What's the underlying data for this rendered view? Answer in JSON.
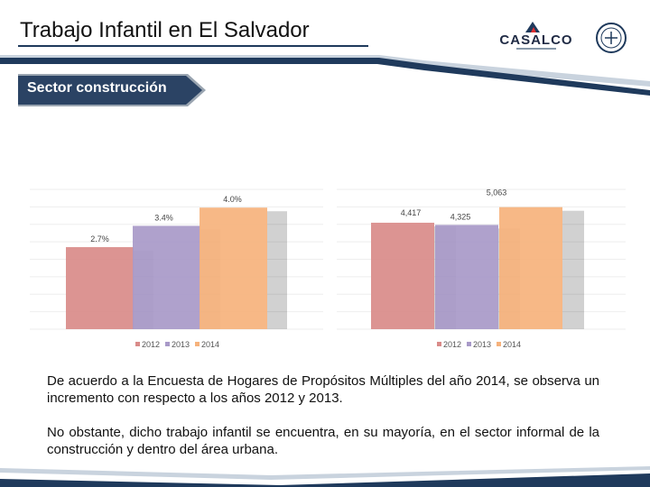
{
  "header": {
    "title": "Trabajo Infantil en El Salvador",
    "section": "Sector construcción",
    "logos": [
      {
        "name": "CASALCO",
        "icon": "casalco-logo"
      },
      {
        "name": "OIT",
        "icon": "oit-logo"
      }
    ]
  },
  "colors": {
    "navy": "#1f3a5c",
    "band_light": "#c9d3de",
    "s2012": "#d98b89",
    "s2013": "#a899c8",
    "s2014": "#f6b27c"
  },
  "chart_data": [
    {
      "type": "bar",
      "title": "",
      "categories": [
        "2012",
        "2013",
        "2014"
      ],
      "values": [
        2.7,
        3.4,
        4.0
      ],
      "labels": [
        "2.7%",
        "3.4%",
        "4.0%"
      ],
      "legend": [
        "2012",
        "2013",
        "2014"
      ],
      "legend_position": "bottom",
      "ylim": [
        0,
        4.6
      ],
      "grid": true
    },
    {
      "type": "bar",
      "title": "",
      "categories": [
        "2012",
        "2013",
        "2014"
      ],
      "values": [
        4417,
        4325,
        5063
      ],
      "labels": [
        "4,417",
        "4,325",
        "5,063"
      ],
      "legend": [
        "2012",
        "2013",
        "2014"
      ],
      "legend_position": "bottom",
      "ylim": [
        0,
        5800
      ],
      "grid": true
    }
  ],
  "text": {
    "p1": "De acuerdo a la Encuesta de Hogares de Propósitos Múltiples del año 2014, se observa un incremento con respecto a los años 2012 y 2013.",
    "p2": "No obstante, dicho trabajo infantil se encuentra, en su mayoría, en el sector informal de la construcción y dentro del área urbana."
  }
}
